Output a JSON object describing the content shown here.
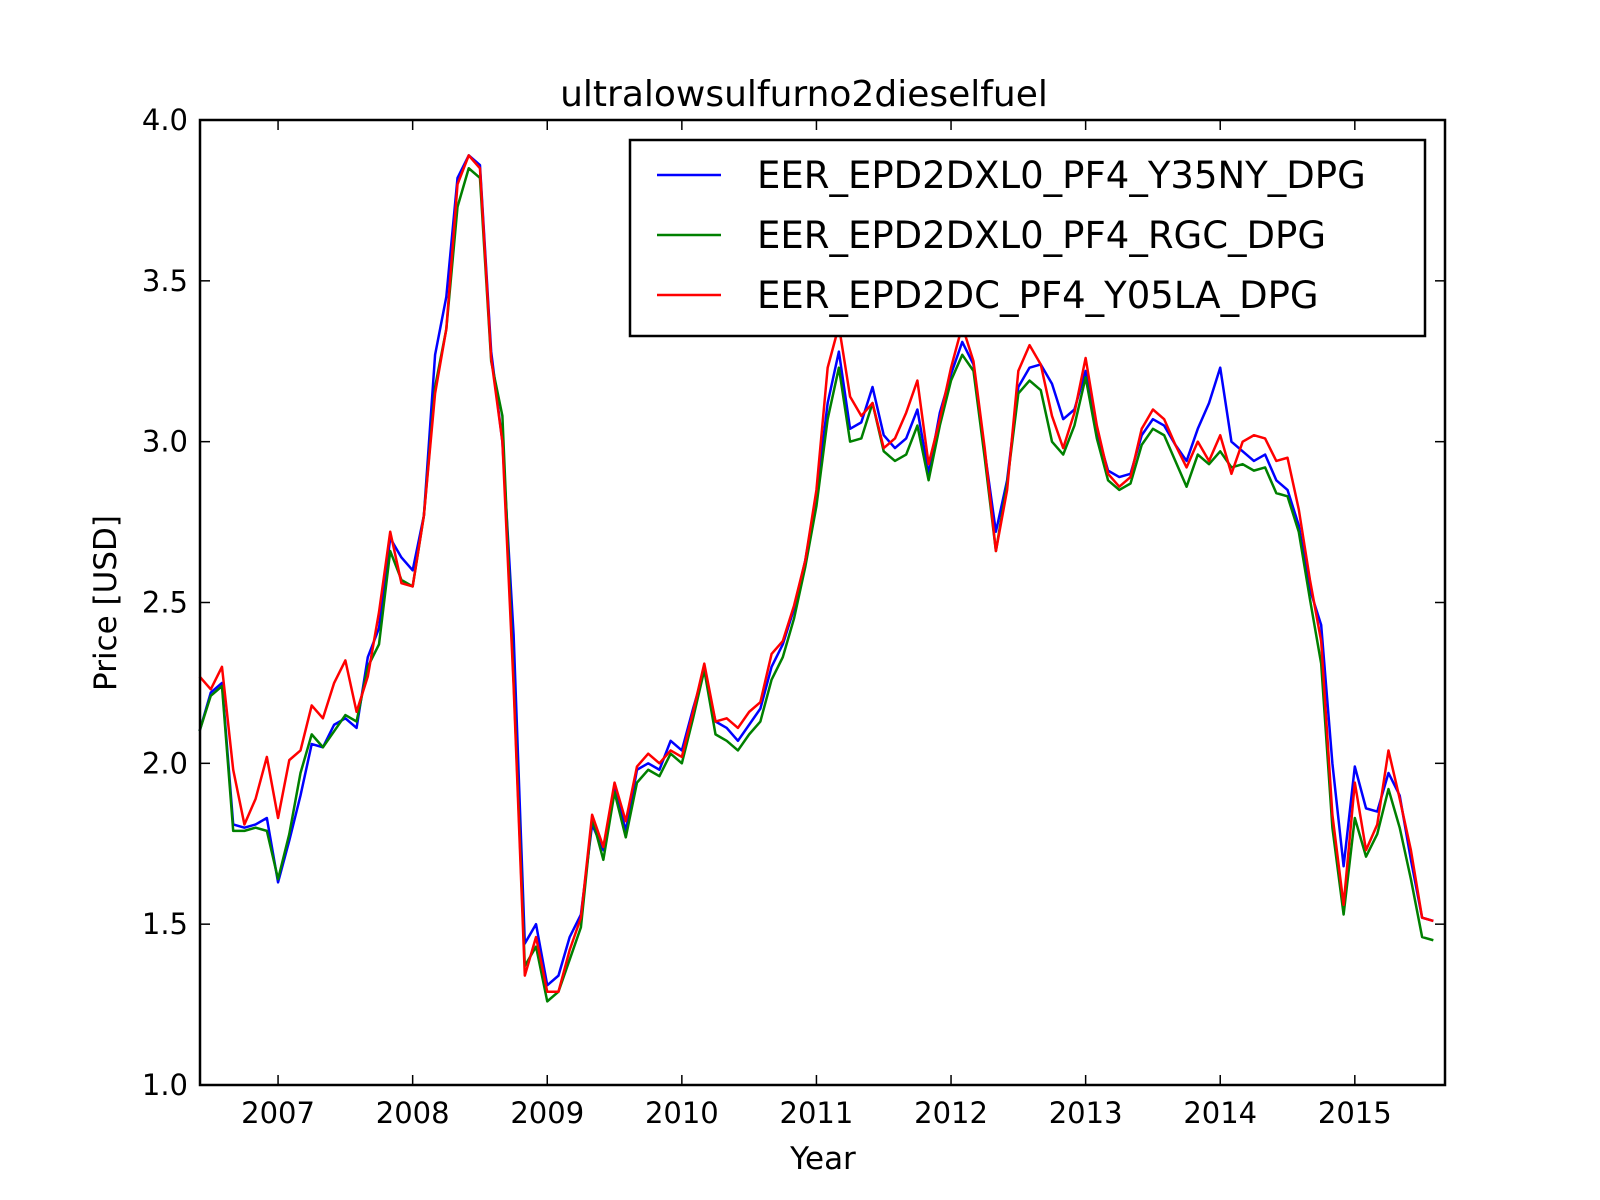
{
  "chart_data": {
    "type": "line",
    "title": "ultralowsulfurno2dieselfuel",
    "xlabel": "Year",
    "ylabel": "Price [USD]",
    "xlim": [
      2006.42,
      2015.67
    ],
    "ylim": [
      1.0,
      4.0
    ],
    "xticks": [
      2007,
      2008,
      2009,
      2010,
      2011,
      2012,
      2013,
      2014,
      2015
    ],
    "xtick_labels": [
      "2007",
      "2008",
      "2009",
      "2010",
      "2011",
      "2012",
      "2013",
      "2014",
      "2015"
    ],
    "yticks": [
      1.0,
      1.5,
      2.0,
      2.5,
      3.0,
      3.5,
      4.0
    ],
    "ytick_labels": [
      "1.0",
      "1.5",
      "2.0",
      "2.5",
      "3.0",
      "3.5",
      "4.0"
    ],
    "grid": false,
    "legend_position": "top-right",
    "x_start": "2006-06",
    "x_step": "1 month",
    "series": [
      {
        "name": "EER_EPD2DXL0_PF4_Y35NY_DPG",
        "color": "#0000ff",
        "values": [
          2.1,
          2.22,
          2.25,
          1.81,
          1.8,
          1.81,
          1.83,
          1.63,
          1.76,
          1.9,
          2.06,
          2.05,
          2.12,
          2.14,
          2.11,
          2.33,
          2.42,
          2.7,
          2.64,
          2.6,
          2.77,
          3.27,
          3.45,
          3.82,
          3.89,
          3.86,
          3.28,
          3.0,
          2.4,
          1.44,
          1.5,
          1.31,
          1.34,
          1.46,
          1.53,
          1.81,
          1.73,
          1.93,
          1.79,
          1.98,
          2.0,
          1.98,
          2.07,
          2.04,
          2.17,
          2.29,
          2.13,
          2.11,
          2.07,
          2.12,
          2.17,
          2.3,
          2.37,
          2.48,
          2.63,
          2.83,
          3.12,
          3.28,
          3.04,
          3.06,
          3.17,
          3.02,
          2.98,
          3.01,
          3.1,
          2.9,
          3.09,
          3.21,
          3.31,
          3.24,
          2.97,
          2.72,
          2.88,
          3.17,
          3.23,
          3.24,
          3.18,
          3.07,
          3.1,
          3.22,
          3.03,
          2.91,
          2.89,
          2.9,
          3.02,
          3.07,
          3.05,
          2.99,
          2.94,
          3.04,
          3.12,
          3.23,
          3.0,
          2.97,
          2.94,
          2.96,
          2.88,
          2.85,
          2.74,
          2.54,
          2.43,
          2.0,
          1.68,
          1.99,
          1.86,
          1.85,
          1.97,
          1.9,
          1.7,
          1.52,
          1.51
        ]
      },
      {
        "name": "EER_EPD2DXL0_PF4_RGC_DPG",
        "color": "#008000",
        "values": [
          2.1,
          2.21,
          2.24,
          1.79,
          1.79,
          1.8,
          1.79,
          1.64,
          1.78,
          1.97,
          2.09,
          2.05,
          2.1,
          2.15,
          2.13,
          2.3,
          2.37,
          2.66,
          2.57,
          2.55,
          2.77,
          3.17,
          3.35,
          3.73,
          3.85,
          3.82,
          3.25,
          3.08,
          2.26,
          1.37,
          1.43,
          1.26,
          1.29,
          1.39,
          1.49,
          1.83,
          1.7,
          1.91,
          1.77,
          1.94,
          1.98,
          1.96,
          2.03,
          2.0,
          2.14,
          2.29,
          2.09,
          2.07,
          2.04,
          2.09,
          2.13,
          2.26,
          2.33,
          2.45,
          2.61,
          2.8,
          3.07,
          3.23,
          3.0,
          3.01,
          3.12,
          2.97,
          2.94,
          2.96,
          3.05,
          2.88,
          3.05,
          3.19,
          3.27,
          3.22,
          2.95,
          2.66,
          2.87,
          3.15,
          3.19,
          3.16,
          3.0,
          2.96,
          3.05,
          3.2,
          3.01,
          2.88,
          2.85,
          2.87,
          2.99,
          3.04,
          3.02,
          2.94,
          2.86,
          2.96,
          2.93,
          2.97,
          2.92,
          2.93,
          2.91,
          2.92,
          2.84,
          2.83,
          2.72,
          2.51,
          2.31,
          1.8,
          1.53,
          1.83,
          1.71,
          1.78,
          1.92,
          1.8,
          1.64,
          1.46,
          1.45
        ]
      },
      {
        "name": "EER_EPD2DC_PF4_Y05LA_DPG",
        "color": "#ff0000",
        "values": [
          2.27,
          2.23,
          2.3,
          1.98,
          1.81,
          1.89,
          2.02,
          1.83,
          2.01,
          2.04,
          2.18,
          2.14,
          2.25,
          2.32,
          2.16,
          2.27,
          2.47,
          2.72,
          2.56,
          2.55,
          2.77,
          3.15,
          3.35,
          3.8,
          3.89,
          3.85,
          3.26,
          3.0,
          2.24,
          1.34,
          1.46,
          1.29,
          1.29,
          1.42,
          1.52,
          1.84,
          1.74,
          1.94,
          1.82,
          1.99,
          2.03,
          2.0,
          2.04,
          2.02,
          2.16,
          2.31,
          2.13,
          2.14,
          2.11,
          2.16,
          2.19,
          2.34,
          2.38,
          2.49,
          2.63,
          2.85,
          3.23,
          3.36,
          3.14,
          3.08,
          3.12,
          2.98,
          3.01,
          3.09,
          3.19,
          2.93,
          3.07,
          3.23,
          3.36,
          3.25,
          2.98,
          2.66,
          2.85,
          3.22,
          3.3,
          3.24,
          3.08,
          2.98,
          3.09,
          3.26,
          3.05,
          2.9,
          2.86,
          2.89,
          3.04,
          3.1,
          3.07,
          2.99,
          2.92,
          3.0,
          2.94,
          3.02,
          2.9,
          3.0,
          3.02,
          3.01,
          2.94,
          2.95,
          2.79,
          2.57,
          2.38,
          1.84,
          1.56,
          1.94,
          1.73,
          1.81,
          2.04,
          1.89,
          1.73,
          1.52,
          1.51
        ]
      }
    ]
  }
}
